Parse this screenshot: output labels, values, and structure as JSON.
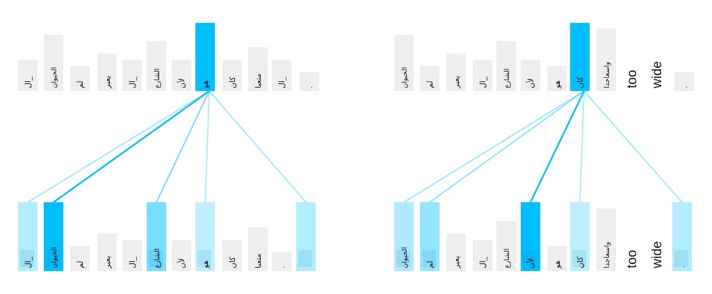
{
  "diagrams": [
    {
      "top_tokens": [
        {
          "text": "ال_",
          "weight": 0
        },
        {
          "text": "الحيوان",
          "weight": 0
        },
        {
          "text": "لم",
          "weight": 0
        },
        {
          "text": "يعبر",
          "weight": 0
        },
        {
          "text": "ال_",
          "weight": 0
        },
        {
          "text": "الشارع",
          "weight": 0
        },
        {
          "text": "لأن",
          "weight": 0
        },
        {
          "text": "هو",
          "weight": 1,
          "focus": true
        },
        {
          "text": "كان",
          "weight": 0
        },
        {
          "text": "متعبا",
          "weight": 0
        },
        {
          "text": "ال_",
          "weight": 0
        },
        {
          "text": ".",
          "weight": 0
        }
      ],
      "bottom_tokens": [
        {
          "text": "ال_",
          "weight": 0.18
        },
        {
          "text": "الحيوان",
          "weight": 1.0
        },
        {
          "text": "لم",
          "weight": 0
        },
        {
          "text": "يعبر",
          "weight": 0
        },
        {
          "text": "ال_",
          "weight": 0
        },
        {
          "text": "الشارع",
          "weight": 0.45
        },
        {
          "text": "لأن",
          "weight": 0
        },
        {
          "text": "هو",
          "weight": 0.12
        },
        {
          "text": "كان",
          "weight": 0
        },
        {
          "text": "متعبا",
          "weight": 0
        },
        {
          "text": ".",
          "weight": 0
        },
        {
          "text": "",
          "weight": 0.18
        }
      ]
    },
    {
      "top_tokens": [
        {
          "text": "الحيوان",
          "weight": 0
        },
        {
          "text": "لم",
          "weight": 0
        },
        {
          "text": "يعبر",
          "weight": 0
        },
        {
          "text": "ال_",
          "weight": 0
        },
        {
          "text": "الشارع",
          "weight": 0
        },
        {
          "text": "لأن",
          "weight": 0
        },
        {
          "text": "هو",
          "weight": 0
        },
        {
          "text": "كان",
          "weight": 1,
          "focus": true
        },
        {
          "text": "واسعاجدا",
          "weight": 0
        },
        {
          "text": "too",
          "weight": 0,
          "big": true
        },
        {
          "text": "wide",
          "weight": 0,
          "big": true
        },
        {
          "text": ".",
          "weight": 0
        }
      ],
      "bottom_tokens": [
        {
          "text": "الحيوان",
          "weight": 0.2
        },
        {
          "text": "لم",
          "weight": 0.3
        },
        {
          "text": "يعبر",
          "weight": 0
        },
        {
          "text": "ال_",
          "weight": 0
        },
        {
          "text": "الشارع",
          "weight": 0
        },
        {
          "text": "لأن",
          "weight": 1.0
        },
        {
          "text": "هو",
          "weight": 0
        },
        {
          "text": "كان",
          "weight": 0.12
        },
        {
          "text": "واسعاجدا",
          "weight": 0
        },
        {
          "text": "too",
          "weight": 0,
          "big": true
        },
        {
          "text": "wide",
          "weight": 0,
          "big": true
        },
        {
          "text": ".",
          "weight": 0.18
        }
      ]
    }
  ],
  "colors": {
    "focus": "#00bfff",
    "inactive": "#eeeeee",
    "line": "#00bfff"
  }
}
